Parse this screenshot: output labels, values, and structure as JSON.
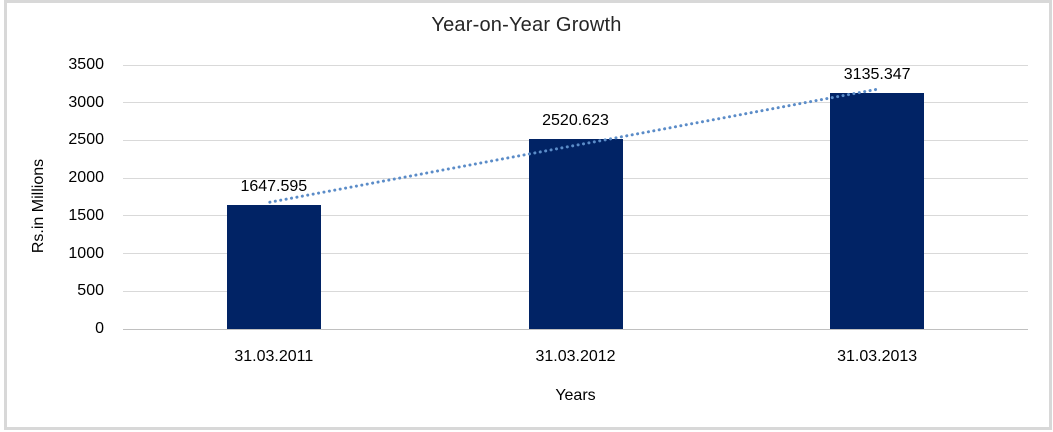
{
  "chart_data": {
    "type": "bar",
    "title": "Year-on-Year Growth",
    "categories": [
      "31.03.2011",
      "31.03.2012",
      "31.03.2013"
    ],
    "values": [
      1647.595,
      2520.623,
      3135.347
    ],
    "value_labels": [
      "1647.595",
      "2520.623",
      "3135.347"
    ],
    "series": [
      {
        "name": "Rs.in Millions",
        "type": "bar",
        "values": [
          1647.595,
          2520.623,
          3135.347
        ]
      },
      {
        "name": "linear-trendline",
        "type": "line",
        "style": "dotted"
      }
    ],
    "xlabel": "Years",
    "ylabel": "Rs.in Millions",
    "ylim": [
      0,
      3500
    ],
    "ytick_step": 500,
    "yticks": [
      0,
      500,
      1000,
      1500,
      2000,
      2500,
      3000,
      3500
    ],
    "ytick_labels": [
      "0",
      "500",
      "1000",
      "1500",
      "2000",
      "2500",
      "3000",
      "3500"
    ],
    "grid": "horizontal",
    "legend": "none",
    "colors": {
      "bar": "#012365",
      "trendline": "#5b8cc8",
      "gridline": "#d9d9d9",
      "zero_line": "#c0c0c0",
      "frame_border": "#d8d8d8",
      "title_text": "#262626",
      "label_text": "#000000"
    }
  }
}
